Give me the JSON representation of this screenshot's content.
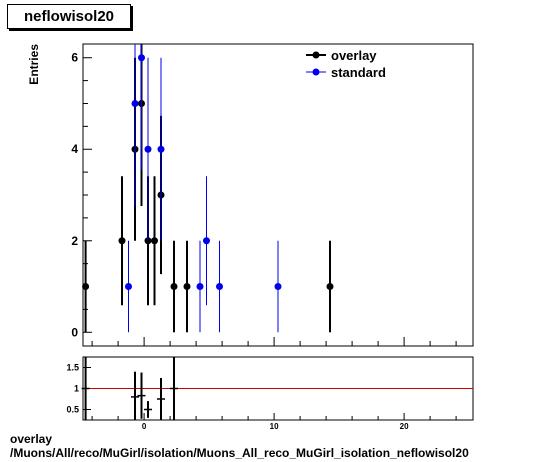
{
  "title": "neflowisol20",
  "footer": {
    "line1": "overlay",
    "line2": "/Muons/All/reco/MuGirl/isolation/Muons_All_reco_MuGirl_isolation_neflowisol20"
  },
  "chart_data": [
    {
      "type": "scatter",
      "ylabel": "Entries",
      "xlim": [
        -4.7,
        25.3
      ],
      "ylim": [
        -0.3,
        6.3
      ],
      "y_ticks": [
        0,
        2,
        4,
        6
      ],
      "legend": {
        "placement": "top-right",
        "entries": [
          "overlay",
          "standard"
        ]
      },
      "series": [
        {
          "name": "overlay",
          "color": "#000000",
          "points": [
            {
              "x": -4.5,
              "y": 1,
              "err": 1
            },
            {
              "x": -1.7,
              "y": 2,
              "err": 1.41
            },
            {
              "x": -0.7,
              "y": 4,
              "err": 2
            },
            {
              "x": -0.2,
              "y": 5,
              "err": 2.24
            },
            {
              "x": 0.3,
              "y": 2,
              "err": 1.41
            },
            {
              "x": 0.8,
              "y": 2,
              "err": 1.41
            },
            {
              "x": 1.3,
              "y": 3,
              "err": 1.73
            },
            {
              "x": 2.3,
              "y": 1,
              "err": 1
            },
            {
              "x": 3.3,
              "y": 1,
              "err": 1
            },
            {
              "x": 14.3,
              "y": 1,
              "err": 1
            }
          ]
        },
        {
          "name": "standard",
          "color": "#0000ee",
          "points": [
            {
              "x": -1.2,
              "y": 1,
              "err": 1
            },
            {
              "x": -0.7,
              "y": 5,
              "err": 2.24
            },
            {
              "x": -0.2,
              "y": 6,
              "err": 2.45
            },
            {
              "x": 0.3,
              "y": 4,
              "err": 2
            },
            {
              "x": 1.3,
              "y": 4,
              "err": 2
            },
            {
              "x": 4.3,
              "y": 1,
              "err": 1
            },
            {
              "x": 4.8,
              "y": 2,
              "err": 1.41
            },
            {
              "x": 5.8,
              "y": 1,
              "err": 1
            },
            {
              "x": 10.3,
              "y": 1,
              "err": 1
            }
          ]
        }
      ]
    },
    {
      "type": "scatter",
      "xlim": [
        -4.7,
        25.3
      ],
      "ylim": [
        0.25,
        1.75
      ],
      "x_ticks": [
        0,
        10,
        20
      ],
      "y_ticks": [
        0.5,
        1,
        1.5
      ],
      "y_tick_labels": [
        "0.5",
        "1",
        "1.5"
      ],
      "reference_line": {
        "y": 1,
        "color": "#cc0000"
      },
      "points": [
        {
          "x": -4.5,
          "y": 1,
          "err": 1.4
        },
        {
          "x": -0.7,
          "y": 0.8,
          "err": 0.6
        },
        {
          "x": -0.2,
          "y": 0.83,
          "err": 0.55
        },
        {
          "x": 0.3,
          "y": 0.5,
          "err": 0.2
        },
        {
          "x": 1.3,
          "y": 0.75,
          "err": 0.5
        },
        {
          "x": 2.3,
          "y": 1,
          "err": 1.4
        }
      ]
    }
  ]
}
